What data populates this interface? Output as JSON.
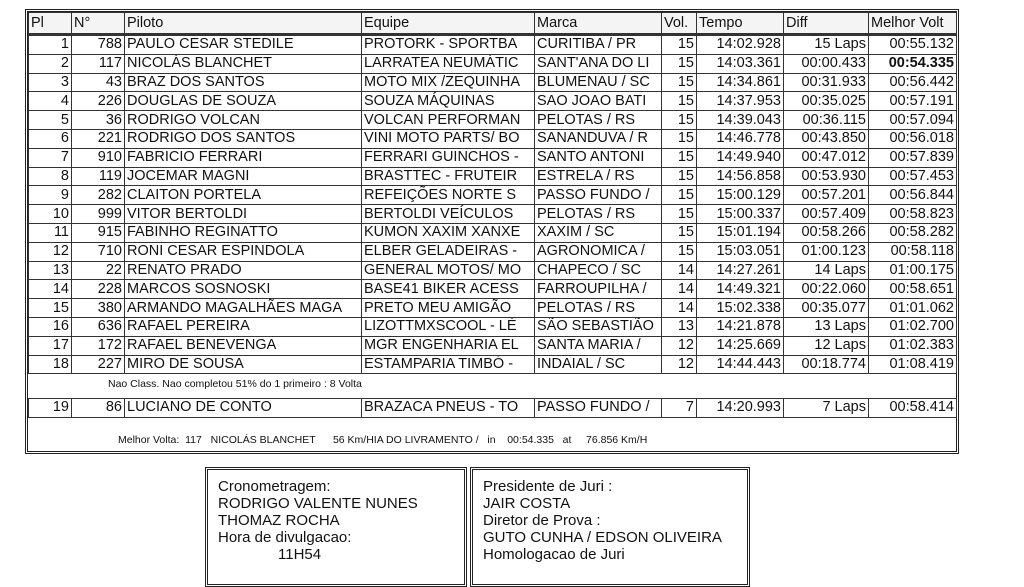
{
  "columns": [
    "Pl",
    "N°",
    "Piloto",
    "Equipe",
    "Marca",
    "Vol.",
    "Tempo",
    "Diff",
    "Melhor Volt"
  ],
  "rows": [
    [
      "1",
      "788",
      "PAULO CESAR STEDILE",
      "PROTORK - SPORTBA",
      "CURITIBA / PR",
      "15",
      "14:02.928",
      "15 Laps",
      "00:55.132"
    ],
    [
      "2",
      "117",
      "NICOLÁS BLANCHET",
      "LARRATEA NEUMÁTIC",
      "SANT'ANA DO LI",
      "15",
      "14:03.361",
      "00:00.433",
      "00:54.335"
    ],
    [
      "3",
      "43",
      "BRAZ DOS SANTOS",
      "MOTO MIX /ZEQUINHA",
      "BLUMENAU / SC",
      "15",
      "14:34.861",
      "00:31.933",
      "00:56.442"
    ],
    [
      "4",
      "226",
      "DOUGLAS DE SOUZA",
      "SOUZA MÁQUINAS",
      "SAO JOAO BATI",
      "15",
      "14:37.953",
      "00:35.025",
      "00:57.191"
    ],
    [
      "5",
      "36",
      "RODRIGO VOLCAN",
      "VOLCAN PERFORMAN",
      "PELOTAS / RS",
      "15",
      "14:39.043",
      "00:36.115",
      "00:57.094"
    ],
    [
      "6",
      "221",
      "RODRIGO DOS SANTOS",
      "VINI MOTO PARTS/ BO",
      "SANANDUVA / R",
      "15",
      "14:46.778",
      "00:43.850",
      "00:56.018"
    ],
    [
      "7",
      "910",
      "FABRICIO FERRARI",
      "FERRARI GUINCHOS -",
      "SANTO ANTONI",
      "15",
      "14:49.940",
      "00:47.012",
      "00:57.839"
    ],
    [
      "8",
      "119",
      "JOCEMAR MAGNI",
      "BRASTTEC - FRUTEIR",
      "ESTRELA / RS",
      "15",
      "14:56.858",
      "00:53.930",
      "00:57.453"
    ],
    [
      "9",
      "282",
      "CLAITON PORTELA",
      "REFEIÇÕES NORTE S",
      "PASSO FUNDO /",
      "15",
      "15:00.129",
      "00:57.201",
      "00:56.844"
    ],
    [
      "10",
      "999",
      "VITOR BERTOLDI",
      "BERTOLDI VEÍCULOS",
      "PELOTAS / RS",
      "15",
      "15:00.337",
      "00:57.409",
      "00:58.823"
    ],
    [
      "11",
      "915",
      "FABINHO REGINATTO",
      "KUMON XAXIM XANXE",
      "XAXIM / SC",
      "15",
      "15:01.194",
      "00:58.266",
      "00:58.282"
    ],
    [
      "12",
      "710",
      "RONI CESAR ESPINDOLA",
      "ELBER GELADEIRAS -",
      "AGRONOMICA /",
      "15",
      "15:03.051",
      "01:00.123",
      "00:58.118"
    ],
    [
      "13",
      "22",
      "RENATO PRADO",
      "GENERAL MOTOS/ MO",
      "CHAPECO / SC",
      "14",
      "14:27.261",
      "14 Laps",
      "01:00.175"
    ],
    [
      "14",
      "228",
      "MARCOS SOSNOSKI",
      "BASE41 BIKER ACESS",
      "FARROUPILHA /",
      "14",
      "14:49.321",
      "00:22.060",
      "00:58.651"
    ],
    [
      "15",
      "380",
      "ARMANDO MAGALHÃES MAGA",
      "PRETO MEU AMIGÃO",
      "PELOTAS / RS",
      "14",
      "15:02.338",
      "00:35.077",
      "01:01.062"
    ],
    [
      "16",
      "636",
      "RAFAEL PEREIRA",
      "LIZOTTMXSCOOL - LÈ",
      "SÃO SEBASTIÃO",
      "13",
      "14:21.878",
      "13 Laps",
      "01:02.700"
    ],
    [
      "17",
      "172",
      "RAFAEL BENEVENGA",
      "MGR ENGENHARIA EL",
      "SANTA MARIA /",
      "12",
      "14:25.669",
      "12 Laps",
      "01:02.383"
    ],
    [
      "18",
      "227",
      "MIRO DE SOUSA",
      "ESTAMPARIA TIMBÓ -",
      "INDAIAL / SC",
      "12",
      "14:44.443",
      "00:18.774",
      "01:08.419"
    ]
  ],
  "note": "Nao Class. Nao completou  51% do 1 primeiro : 8 Volta",
  "non_classified": [
    [
      "19",
      "86",
      "LUCIANO DE CONTO",
      "BRAZACA PNEUS - TO",
      "PASSO FUNDO /",
      "7",
      "14:20.993",
      "7 Laps",
      "00:58.414"
    ]
  ],
  "best_lap": "Melhor Volta:  117   NICOLÁS BLANCHET      56 Km/HIA DO LIVRAMENTO /   in    00:54.335   at     76.856 Km/H",
  "officials_left": [
    "Cronometragem:",
    "RODRIGO VALENTE NUNES",
    "THOMAZ ROCHA",
    "Hora de divulgacao:",
    "     11H54"
  ],
  "officials_right": [
    "Presidente de Juri :",
    "JAIR COSTA",
    "Diretor de Prova :",
    "GUTO CUNHA / EDSON OLIVEIRA",
    "Homologacao de Juri"
  ]
}
